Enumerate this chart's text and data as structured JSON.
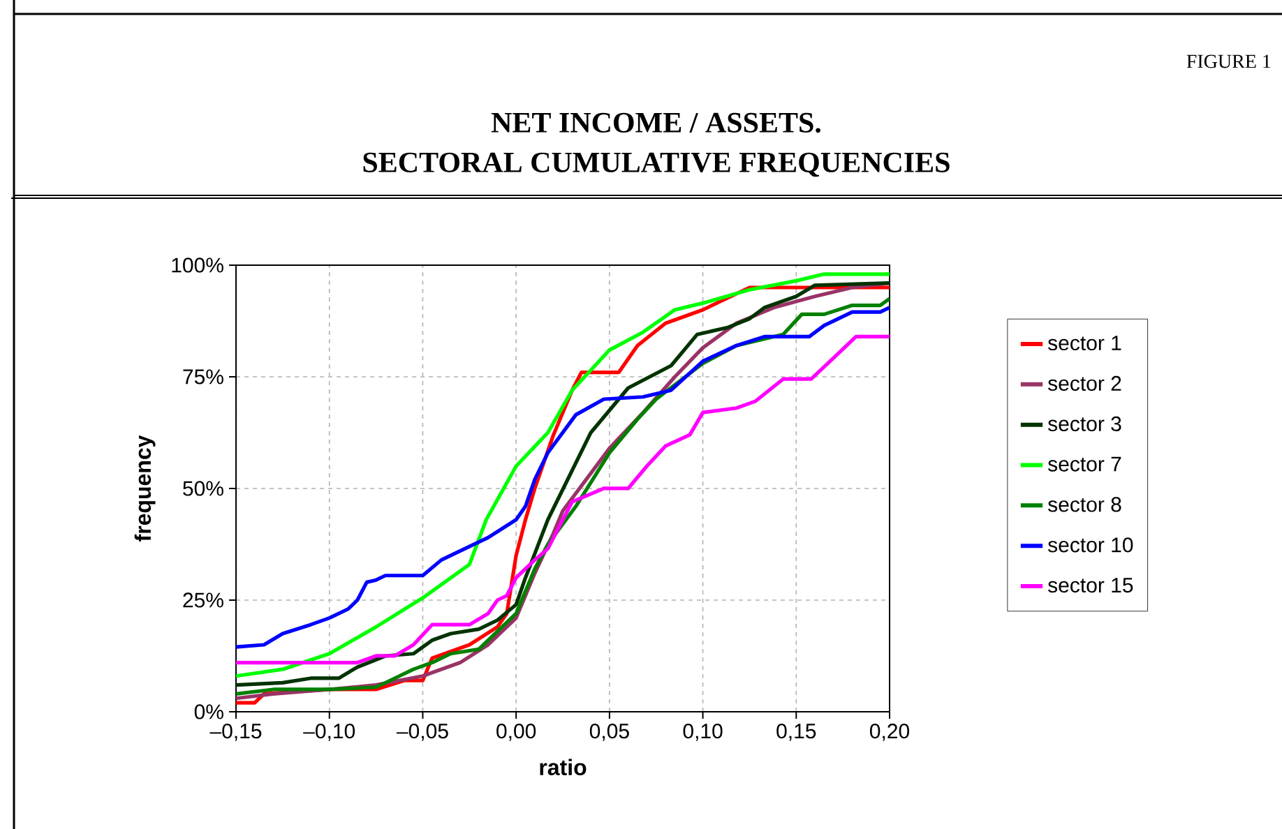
{
  "chart_data": {
    "type": "line",
    "title": "NET INCOME / ASSETS.",
    "subtitle": "SECTORAL CUMULATIVE FREQUENCIES",
    "xlabel": "ratio",
    "ylabel": "frequency",
    "annotations": [
      "FIGURE 1"
    ],
    "xlim": [
      -0.15,
      0.2
    ],
    "ylim": [
      0,
      100
    ],
    "xticks": [
      {
        "value": -0.15,
        "label": "–0,15"
      },
      {
        "value": -0.1,
        "label": "–0,10"
      },
      {
        "value": -0.05,
        "label": "–0,05"
      },
      {
        "value": 0,
        "label": "0,00"
      },
      {
        "value": 0.05,
        "label": "0,05"
      },
      {
        "value": 0.1,
        "label": "0,10"
      },
      {
        "value": 0.15,
        "label": "0,15"
      },
      {
        "value": 0.2,
        "label": "0,20"
      }
    ],
    "yticks": [
      {
        "value": 0,
        "label": "0%"
      },
      {
        "value": 25,
        "label": "25%"
      },
      {
        "value": 50,
        "label": "50%"
      },
      {
        "value": 75,
        "label": "75%"
      },
      {
        "value": 100,
        "label": "100%"
      }
    ],
    "grid": true,
    "legend": "right",
    "marker": "none",
    "line_style": "solid",
    "series": [
      {
        "name": "sector 1",
        "color": "#ff0000",
        "x": [
          -0.15,
          -0.14,
          -0.135,
          -0.1,
          -0.075,
          -0.06,
          -0.05,
          -0.045,
          -0.025,
          -0.01,
          -0.005,
          0,
          0.005,
          0.01,
          0.02,
          0.03,
          0.035,
          0.055,
          0.065,
          0.08,
          0.1,
          0.125,
          0.15,
          0.2
        ],
        "values": [
          2,
          2,
          4,
          5,
          5,
          7,
          7,
          12,
          15,
          19,
          22,
          35,
          43,
          50,
          62,
          72,
          76,
          76,
          82,
          87,
          90,
          95,
          95,
          95
        ]
      },
      {
        "name": "sector 2",
        "color": "#993366",
        "x": [
          -0.15,
          -0.13,
          -0.1,
          -0.075,
          -0.05,
          -0.03,
          -0.015,
          0,
          0.01,
          0.02,
          0.025,
          0.05,
          0.068,
          0.085,
          0.1,
          0.118,
          0.138,
          0.16,
          0.18,
          0.2
        ],
        "values": [
          3,
          4,
          5,
          6,
          8,
          11,
          15,
          21,
          31,
          40,
          45,
          59,
          67,
          75,
          81.5,
          87,
          90.5,
          93,
          95,
          96
        ]
      },
      {
        "name": "sector 3",
        "color": "#003300",
        "x": [
          -0.15,
          -0.125,
          -0.11,
          -0.095,
          -0.085,
          -0.07,
          -0.055,
          -0.045,
          -0.035,
          -0.02,
          -0.01,
          0,
          0.005,
          0.017,
          0.04,
          0.06,
          0.083,
          0.097,
          0.113,
          0.125,
          0.133,
          0.15,
          0.16,
          0.2
        ],
        "values": [
          6,
          6.5,
          7.5,
          7.5,
          10,
          12.5,
          13,
          16,
          17.5,
          18.5,
          20.5,
          24,
          30,
          43,
          62.5,
          72.5,
          77.5,
          84.5,
          86,
          88,
          90.5,
          93,
          95.5,
          96
        ]
      },
      {
        "name": "sector 7",
        "color": "#00ff00",
        "x": [
          -0.15,
          -0.125,
          -0.1,
          -0.075,
          -0.05,
          -0.025,
          -0.016,
          0,
          0.017,
          0.03,
          0.05,
          0.068,
          0.085,
          0.1,
          0.125,
          0.15,
          0.165,
          0.2
        ],
        "values": [
          8,
          9.5,
          13,
          19,
          25.5,
          33,
          43,
          55,
          62.5,
          72,
          81,
          85,
          90,
          91.5,
          94.5,
          96.5,
          98,
          98
        ]
      },
      {
        "name": "sector 8",
        "color": "#008000",
        "x": [
          -0.15,
          -0.13,
          -0.1,
          -0.075,
          -0.065,
          -0.055,
          -0.045,
          -0.035,
          -0.02,
          0,
          0.01,
          0.017,
          0.032,
          0.05,
          0.065,
          0.075,
          0.1,
          0.118,
          0.143,
          0.153,
          0.165,
          0.18,
          0.195,
          0.2
        ],
        "values": [
          4,
          5,
          5,
          5.5,
          7.5,
          9.5,
          11,
          13,
          14,
          22,
          32,
          37.5,
          46,
          58,
          65.5,
          70,
          78,
          82,
          84.5,
          89,
          89,
          91,
          91,
          92.5
        ]
      },
      {
        "name": "sector 10",
        "color": "#0000ff",
        "x": [
          -0.15,
          -0.135,
          -0.125,
          -0.11,
          -0.1,
          -0.09,
          -0.085,
          -0.08,
          -0.075,
          -0.07,
          -0.05,
          -0.04,
          -0.025,
          -0.015,
          0,
          0.005,
          0.01,
          0.017,
          0.032,
          0.047,
          0.068,
          0.083,
          0.1,
          0.118,
          0.133,
          0.157,
          0.165,
          0.18,
          0.195,
          0.2
        ],
        "values": [
          14.5,
          15,
          17.5,
          19.5,
          21,
          23,
          25,
          29,
          29.5,
          30.5,
          30.5,
          34,
          37,
          39,
          43,
          46,
          52,
          58,
          66.5,
          70,
          70.5,
          72,
          78.5,
          82,
          84,
          84,
          86.5,
          89.5,
          89.5,
          90.5
        ]
      },
      {
        "name": "sector 15",
        "color": "#ff00ff",
        "x": [
          -0.15,
          -0.085,
          -0.075,
          -0.065,
          -0.055,
          -0.045,
          -0.025,
          -0.015,
          -0.01,
          -0.005,
          0,
          0.01,
          0.017,
          0.025,
          0.03,
          0.047,
          0.06,
          0.07,
          0.08,
          0.093,
          0.1,
          0.118,
          0.128,
          0.143,
          0.158,
          0.172,
          0.182,
          0.2
        ],
        "values": [
          11,
          11,
          12.5,
          12.5,
          15,
          19.5,
          19.5,
          22,
          25,
          26,
          30,
          34,
          36.5,
          43,
          47,
          50,
          50,
          55,
          59.5,
          62,
          67,
          68,
          69.5,
          74.5,
          74.5,
          80,
          84,
          84
        ]
      }
    ]
  }
}
